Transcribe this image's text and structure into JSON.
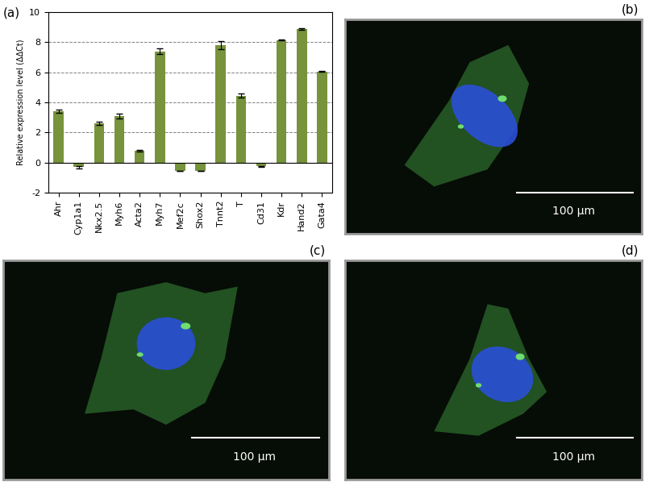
{
  "chart_data": {
    "type": "bar",
    "title": "(a)",
    "y_label": "Relative expression level (ΔΔCt)",
    "categories": [
      "Ahr",
      "Cyp1a1",
      "Nkx2.5",
      "Myh6",
      "Acta2",
      "Myh7",
      "Mef2c",
      "Shox2",
      "Tnnt2",
      "T",
      "Cd31",
      "Kdr",
      "Hand2",
      "Gata4"
    ],
    "values": [
      3.42,
      -0.3,
      2.6,
      3.1,
      0.78,
      7.4,
      -0.55,
      -0.55,
      7.8,
      4.45,
      -0.25,
      8.15,
      8.88,
      6.05
    ],
    "errors": [
      0.1,
      0.1,
      0.1,
      0.15,
      0.05,
      0.2,
      0.0,
      0.0,
      0.25,
      0.15,
      0.05,
      0.05,
      0.05,
      0.03
    ],
    "color": "#77933c",
    "ylim": [
      -2,
      10
    ],
    "yticks": [
      -2,
      0,
      2,
      4,
      6,
      8,
      10
    ],
    "grid": true
  },
  "images": [
    {
      "label": "(b)",
      "scale_bar": "100 µm"
    },
    {
      "label": "(c)",
      "scale_bar": "100 µm"
    },
    {
      "label": "(d)",
      "scale_bar": "100 µm"
    }
  ]
}
